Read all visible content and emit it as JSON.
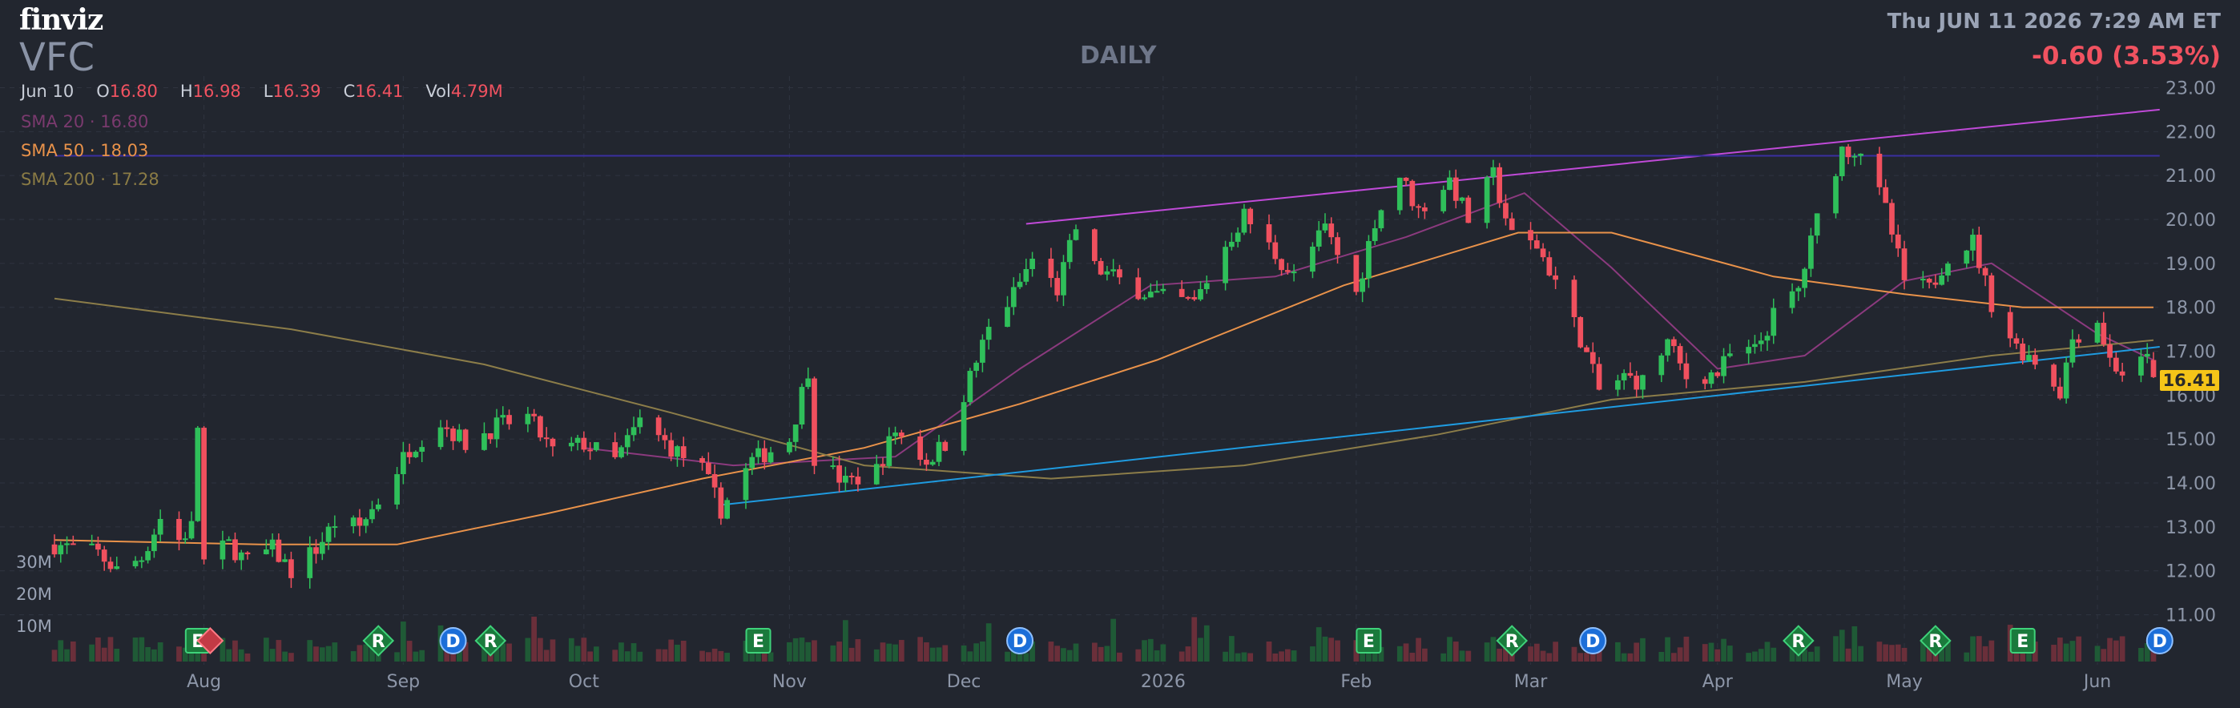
{
  "header": {
    "logo": "finviz",
    "ticker": "VFC",
    "period": "DAILY",
    "datetime": "Thu JUN 11 2026 7:29 AM ET",
    "change": "-0.60 (3.53%)"
  },
  "ohlc": {
    "date": "Jun 10",
    "o_label": "O",
    "open": "16.80",
    "h_label": "H",
    "high": "16.98",
    "l_label": "L",
    "low": "16.39",
    "c_label": "C",
    "close": "16.41",
    "vol_label": "Vol",
    "volume": "4.79M"
  },
  "sma": {
    "sma20_text": "SMA 20 · 16.80",
    "sma50_text": "SMA 50 · 18.03",
    "sma200_text": "SMA 200 · 17.28"
  },
  "volume_axis": [
    "30M",
    "20M",
    "10M"
  ],
  "last_price_label": "16.41",
  "colors": {
    "up": "#2fbf5a",
    "down": "#f0505e",
    "sma20": "#8b3a7e",
    "sma50": "#e9924a",
    "sma200": "#8c7d49",
    "trend_upper": "#c04ad8",
    "trend_lower": "#1f9be0",
    "horizontal": "#3a2fa0",
    "last_price": "#f5c518"
  },
  "chart_data": {
    "type": "candlestick",
    "y_axis": {
      "ticks": [
        11,
        12,
        13,
        14,
        15,
        16,
        17,
        18,
        19,
        20,
        21,
        22,
        23
      ],
      "tick_labels": [
        "11.00",
        "12.00",
        "13.00",
        "14.00",
        "15.00",
        "16.00",
        "17.00",
        "18.00",
        "19.00",
        "20.00",
        "21.00",
        "22.00",
        "23.00"
      ],
      "ylim": [
        10.5,
        23.1
      ]
    },
    "x_axis_labels": [
      "Aug",
      "Sep",
      "Oct",
      "Nov",
      "Dec",
      "2026",
      "Feb",
      "Mar",
      "Apr",
      "May",
      "Jun"
    ],
    "x_axis_label_dates": [
      "2025-08-01",
      "2025-09-02",
      "2025-10-01",
      "2025-11-03",
      "2025-12-01",
      "2026-01-02",
      "2026-02-02",
      "2026-03-02",
      "2026-04-01",
      "2026-05-01",
      "2026-06-01"
    ],
    "date_range": [
      "2025-07-08",
      "2026-06-10"
    ],
    "price_path": [
      [
        "2025-07-08",
        12.6
      ],
      [
        "2025-07-15",
        12.4
      ],
      [
        "2025-07-18",
        12.0
      ],
      [
        "2025-07-22",
        12.3
      ],
      [
        "2025-07-25",
        13.2
      ],
      [
        "2025-07-28",
        12.7
      ],
      [
        "2025-07-30",
        13.0
      ],
      [
        "2025-07-31",
        15.3
      ],
      [
        "2025-08-01",
        12.2
      ],
      [
        "2025-08-05",
        12.6
      ],
      [
        "2025-08-08",
        12.2
      ],
      [
        "2025-08-12",
        12.5
      ],
      [
        "2025-08-15",
        12.0
      ],
      [
        "2025-08-19",
        12.5
      ],
      [
        "2025-08-22",
        13.1
      ],
      [
        "2025-08-26",
        13.0
      ],
      [
        "2025-08-29",
        13.6
      ],
      [
        "2025-09-03",
        14.8
      ],
      [
        "2025-09-08",
        15.4
      ],
      [
        "2025-09-12",
        14.9
      ],
      [
        "2025-09-17",
        15.3
      ],
      [
        "2025-09-22",
        15.5
      ],
      [
        "2025-09-26",
        14.7
      ],
      [
        "2025-10-01",
        14.9
      ],
      [
        "2025-10-06",
        14.5
      ],
      [
        "2025-10-10",
        15.4
      ],
      [
        "2025-10-15",
        14.8
      ],
      [
        "2025-10-20",
        14.3
      ],
      [
        "2025-10-23",
        13.4
      ],
      [
        "2025-10-28",
        14.5
      ],
      [
        "2025-11-03",
        15.0
      ],
      [
        "2025-11-06",
        16.6
      ],
      [
        "2025-11-07",
        14.6
      ],
      [
        "2025-11-12",
        14.0
      ],
      [
        "2025-11-17",
        14.3
      ],
      [
        "2025-11-20",
        15.2
      ],
      [
        "2025-11-25",
        14.5
      ],
      [
        "2025-11-28",
        14.9
      ],
      [
        "2025-12-02",
        16.4
      ],
      [
        "2025-12-05",
        17.5
      ],
      [
        "2025-12-09",
        18.3
      ],
      [
        "2025-12-12",
        19.1
      ],
      [
        "2025-12-16",
        18.4
      ],
      [
        "2025-12-19",
        19.8
      ],
      [
        "2025-12-22",
        18.9
      ],
      [
        "2025-12-29",
        18.4
      ],
      [
        "2026-01-02",
        18.2
      ],
      [
        "2026-01-07",
        18.1
      ],
      [
        "2026-01-12",
        19.4
      ],
      [
        "2026-01-15",
        20.1
      ],
      [
        "2026-01-20",
        19.2
      ],
      [
        "2026-01-23",
        18.7
      ],
      [
        "2026-01-28",
        19.8
      ],
      [
        "2026-02-02",
        18.3
      ],
      [
        "2026-02-05",
        20.0
      ],
      [
        "2026-02-09",
        21.0
      ],
      [
        "2026-02-12",
        20.2
      ],
      [
        "2026-02-17",
        20.9
      ],
      [
        "2026-02-20",
        20.0
      ],
      [
        "2026-02-24",
        21.0
      ],
      [
        "2026-02-27",
        19.6
      ],
      [
        "2026-03-03",
        19.4
      ],
      [
        "2026-03-06",
        18.6
      ],
      [
        "2026-03-10",
        17.3
      ],
      [
        "2026-03-13",
        16.1
      ],
      [
        "2026-03-17",
        16.4
      ],
      [
        "2026-03-20",
        16.3
      ],
      [
        "2026-03-24",
        17.2
      ],
      [
        "2026-03-27",
        16.4
      ],
      [
        "2026-04-01",
        16.5
      ],
      [
        "2026-04-03",
        16.9
      ],
      [
        "2026-04-07",
        17.0
      ],
      [
        "2026-04-10",
        17.8
      ],
      [
        "2026-04-14",
        18.4
      ],
      [
        "2026-04-17",
        20.0
      ],
      [
        "2026-04-21",
        21.6
      ],
      [
        "2026-04-24",
        21.6
      ],
      [
        "2026-04-28",
        20.2
      ],
      [
        "2026-05-01",
        18.6
      ],
      [
        "2026-05-05",
        18.4
      ],
      [
        "2026-05-08",
        19.2
      ],
      [
        "2026-05-12",
        19.5
      ],
      [
        "2026-05-15",
        18.1
      ],
      [
        "2026-05-19",
        17.1
      ],
      [
        "2026-05-22",
        16.8
      ],
      [
        "2026-05-26",
        16.1
      ],
      [
        "2026-05-28",
        17.3
      ],
      [
        "2026-06-01",
        17.7
      ],
      [
        "2026-06-03",
        16.8
      ],
      [
        "2026-06-05",
        16.5
      ],
      [
        "2026-06-09",
        16.8
      ],
      [
        "2026-06-10",
        16.41
      ]
    ],
    "last_candle": {
      "date": "2026-06-10",
      "open": 16.8,
      "high": 16.98,
      "low": 16.39,
      "close": 16.41,
      "volume": "4.79M"
    },
    "series": [
      {
        "name": "SMA 20",
        "value_last": 16.8,
        "path": [
          [
            "2025-10-01",
            14.8
          ],
          [
            "2025-10-25",
            14.4
          ],
          [
            "2025-11-20",
            14.6
          ],
          [
            "2025-12-10",
            16.6
          ],
          [
            "2025-12-31",
            18.5
          ],
          [
            "2026-01-20",
            18.7
          ],
          [
            "2026-02-10",
            19.6
          ],
          [
            "2026-03-01",
            20.6
          ],
          [
            "2026-03-15",
            18.9
          ],
          [
            "2026-04-01",
            16.6
          ],
          [
            "2026-04-15",
            16.9
          ],
          [
            "2026-05-01",
            18.6
          ],
          [
            "2026-05-15",
            19.0
          ],
          [
            "2026-06-01",
            17.4
          ],
          [
            "2026-06-10",
            16.8
          ]
        ]
      },
      {
        "name": "SMA 50",
        "value_last": 18.03,
        "path": [
          [
            "2025-07-08",
            12.7
          ],
          [
            "2025-08-10",
            12.6
          ],
          [
            "2025-09-01",
            12.6
          ],
          [
            "2025-09-25",
            13.3
          ],
          [
            "2025-10-20",
            14.1
          ],
          [
            "2025-11-15",
            14.8
          ],
          [
            "2025-12-10",
            15.8
          ],
          [
            "2026-01-01",
            16.8
          ],
          [
            "2026-01-31",
            18.5
          ],
          [
            "2026-02-28",
            19.7
          ],
          [
            "2026-03-15",
            19.7
          ],
          [
            "2026-04-10",
            18.7
          ],
          [
            "2026-05-01",
            18.3
          ],
          [
            "2026-05-20",
            18.0
          ],
          [
            "2026-06-10",
            18.0
          ]
        ]
      },
      {
        "name": "SMA 200",
        "value_last": 17.28,
        "path": [
          [
            "2025-07-08",
            18.2
          ],
          [
            "2025-08-15",
            17.5
          ],
          [
            "2025-09-15",
            16.7
          ],
          [
            "2025-10-15",
            15.6
          ],
          [
            "2025-11-15",
            14.4
          ],
          [
            "2025-12-15",
            14.1
          ],
          [
            "2026-01-15",
            14.4
          ],
          [
            "2026-02-15",
            15.1
          ],
          [
            "2026-03-15",
            15.9
          ],
          [
            "2026-04-15",
            16.3
          ],
          [
            "2026-05-15",
            16.9
          ],
          [
            "2026-06-10",
            17.25
          ]
        ]
      }
    ],
    "trendlines": [
      {
        "color": "upper",
        "from": [
          "2025-12-11",
          19.9
        ],
        "to": [
          "2026-06-11",
          22.5
        ]
      },
      {
        "color": "lower",
        "from": [
          "2025-10-23",
          13.5
        ],
        "to": [
          "2026-06-11",
          17.1
        ]
      },
      {
        "color": "horizontal",
        "from": [
          "2025-07-08",
          21.45
        ],
        "to": [
          "2026-06-11",
          21.45
        ]
      }
    ],
    "volume_scale_max_M": 30,
    "events": [
      {
        "date": "2025-07-31",
        "code": "E"
      },
      {
        "date": "2025-08-02",
        "code": "dividend-marker"
      },
      {
        "date": "2025-08-29",
        "code": "R"
      },
      {
        "date": "2025-09-10",
        "code": "D"
      },
      {
        "date": "2025-09-16",
        "code": "R"
      },
      {
        "date": "2025-10-29",
        "code": "E"
      },
      {
        "date": "2025-12-10",
        "code": "D"
      },
      {
        "date": "2026-02-04",
        "code": "E"
      },
      {
        "date": "2026-02-27",
        "code": "R"
      },
      {
        "date": "2026-03-12",
        "code": "D"
      },
      {
        "date": "2026-04-14",
        "code": "R"
      },
      {
        "date": "2026-05-06",
        "code": "R"
      },
      {
        "date": "2026-05-20",
        "code": "E"
      },
      {
        "date": "2026-06-11",
        "code": "D"
      }
    ]
  }
}
